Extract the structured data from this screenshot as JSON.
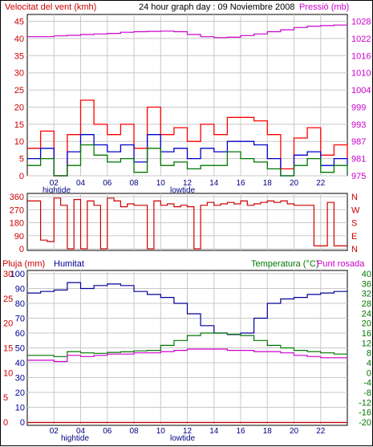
{
  "chart_data": [
    {
      "type": "line",
      "title": "24 hour graph day : 09 Noviembre 2008",
      "left_axis_label": "Velocitat del vent (kmh)",
      "right_axis_label": "Pressió (mb)",
      "left_ticks": [
        "0",
        "5",
        "10",
        "15",
        "20",
        "25",
        "30",
        "35",
        "40",
        "45"
      ],
      "right_ticks": [
        "975",
        "981",
        "987",
        "993",
        "999",
        "1004",
        "1010",
        "1016",
        "1022",
        "1028"
      ],
      "x_ticks": [
        "02",
        "04",
        "06",
        "08",
        "10",
        "12",
        "14",
        "16",
        "18",
        "20",
        "22"
      ],
      "ylim_left": [
        0,
        47
      ],
      "ylim_right": [
        975,
        1033
      ],
      "x": [
        0,
        1,
        2,
        3,
        4,
        5,
        6,
        7,
        8,
        9,
        10,
        11,
        12,
        13,
        14,
        15,
        16,
        17,
        18,
        19,
        20,
        21,
        22,
        23,
        24
      ],
      "series": [
        {
          "name": "Pressió (mb)",
          "color": "#cc00cc",
          "values": [
            1025,
            1025,
            1025.3,
            1025.5,
            1025.8,
            1026,
            1026.2,
            1026.6,
            1026.8,
            1026.9,
            1027,
            1026.8,
            1025.8,
            1025,
            1024.7,
            1024.8,
            1025.4,
            1026,
            1026.8,
            1027.5,
            1028.3,
            1028.8,
            1029,
            1029.2,
            1029.3
          ]
        },
        {
          "name": "gust",
          "color": "#ff0000",
          "values": [
            8,
            13,
            0,
            12,
            22,
            15,
            12,
            15,
            8,
            20,
            12,
            14,
            10,
            15,
            12,
            17,
            17,
            16,
            12,
            2,
            11,
            14,
            6,
            9,
            5
          ]
        },
        {
          "name": "average",
          "color": "#0000cc",
          "values": [
            5,
            8,
            0,
            7,
            12,
            9,
            7,
            9,
            4,
            12,
            7,
            8,
            5,
            8,
            7,
            10,
            10,
            9,
            5,
            0,
            6,
            7,
            3,
            5,
            3
          ]
        },
        {
          "name": "minimum",
          "color": "#007700",
          "values": [
            3,
            5,
            0,
            3,
            9,
            6,
            4,
            5,
            1,
            8,
            3,
            4,
            2,
            3,
            3,
            7,
            5,
            4,
            2,
            0,
            3,
            5,
            1,
            3,
            1
          ]
        }
      ]
    },
    {
      "type": "line",
      "left_ticks": [
        "360",
        "270",
        "180",
        "90",
        "0"
      ],
      "right_labels": [
        "N",
        "W",
        "S",
        "E",
        "N"
      ],
      "ylim": [
        0,
        360
      ],
      "x": [
        0,
        0.5,
        1,
        1.5,
        2,
        2.5,
        3,
        3.5,
        4,
        4.5,
        5,
        5.5,
        6,
        6.5,
        7,
        7.5,
        8,
        8.5,
        9,
        9.5,
        10,
        10.5,
        11,
        11.5,
        12,
        12.5,
        13,
        13.5,
        14,
        14.5,
        15,
        15.5,
        16,
        16.5,
        17,
        17.5,
        18,
        18.5,
        19,
        19.5,
        20,
        20.5,
        21,
        21.5,
        22,
        22.5,
        23,
        23.5,
        24
      ],
      "series": [
        {
          "name": "direction",
          "color": "#cc0000",
          "values": [
            330,
            330,
            60,
            50,
            350,
            300,
            0,
            340,
            0,
            330,
            300,
            0,
            350,
            330,
            290,
            310,
            300,
            300,
            0,
            330,
            300,
            310,
            290,
            300,
            290,
            0,
            300,
            320,
            300,
            310,
            320,
            310,
            330,
            300,
            310,
            320,
            330,
            320,
            330,
            310,
            300,
            300,
            300,
            20,
            20,
            320,
            20,
            20,
            20
          ]
        }
      ]
    },
    {
      "type": "line",
      "left_axis_label_1": "Pluja (mm)",
      "left_axis_label_2": "Humitat",
      "right_axis_label_1": "Temperatura (°C)",
      "right_axis_label_2": "Punt rosada",
      "left_ticks_rain": [
        "0",
        "5",
        "10",
        "15",
        "20",
        "25",
        "30"
      ],
      "left_ticks_hum": [
        "0",
        "10",
        "20",
        "30",
        "40",
        "50",
        "60",
        "70",
        "80",
        "90",
        "100"
      ],
      "right_ticks": [
        "-20",
        "-16",
        "-12",
        "-8",
        "-4",
        "0",
        "4",
        "8",
        "12",
        "16",
        "20",
        "24",
        "28",
        "32",
        "36",
        "40"
      ],
      "x_ticks": [
        "02",
        "04",
        "06",
        "08",
        "10",
        "12",
        "14",
        "16",
        "18",
        "20",
        "22"
      ],
      "ylim_hum": [
        0,
        100
      ],
      "ylim_temp": [
        -20,
        40
      ],
      "x": [
        0,
        1,
        2,
        3,
        4,
        5,
        6,
        7,
        8,
        9,
        10,
        11,
        12,
        13,
        14,
        15,
        16,
        17,
        18,
        19,
        20,
        21,
        22,
        23,
        24
      ],
      "series": [
        {
          "name": "Humitat",
          "color": "#000099",
          "values": [
            87,
            88,
            89,
            94,
            90,
            92,
            93,
            92,
            88,
            86,
            84,
            80,
            73,
            65,
            60,
            59,
            60,
            70,
            80,
            83,
            84,
            86,
            87,
            88,
            89
          ]
        },
        {
          "name": "Temperatura (°C)",
          "color": "#007700",
          "values": [
            7,
            7,
            6.5,
            8.5,
            8,
            7.8,
            8.2,
            8.4,
            8.8,
            9,
            11,
            13,
            15,
            16,
            16,
            15.5,
            15,
            13,
            11,
            10,
            9,
            8.5,
            8,
            7.5,
            7
          ]
        },
        {
          "name": "Punt rosada",
          "color": "#cc00cc",
          "values": [
            5,
            5,
            4.5,
            7,
            6.5,
            7,
            7.5,
            7.5,
            8,
            8,
            8.5,
            9,
            9.5,
            9.5,
            9.5,
            9,
            9,
            8.5,
            8.5,
            8,
            7,
            6.5,
            6,
            6,
            5.5
          ]
        },
        {
          "name": "Pluja (mm)",
          "color": "#cc0000",
          "values": [
            0,
            0,
            0,
            0,
            0,
            0,
            0,
            0,
            0,
            0,
            0,
            0,
            0,
            0,
            0,
            0,
            0,
            0,
            0,
            0,
            0,
            0,
            0,
            0,
            0
          ]
        }
      ]
    }
  ],
  "tide_labels": {
    "high": "hightide",
    "low": "lowtide"
  }
}
